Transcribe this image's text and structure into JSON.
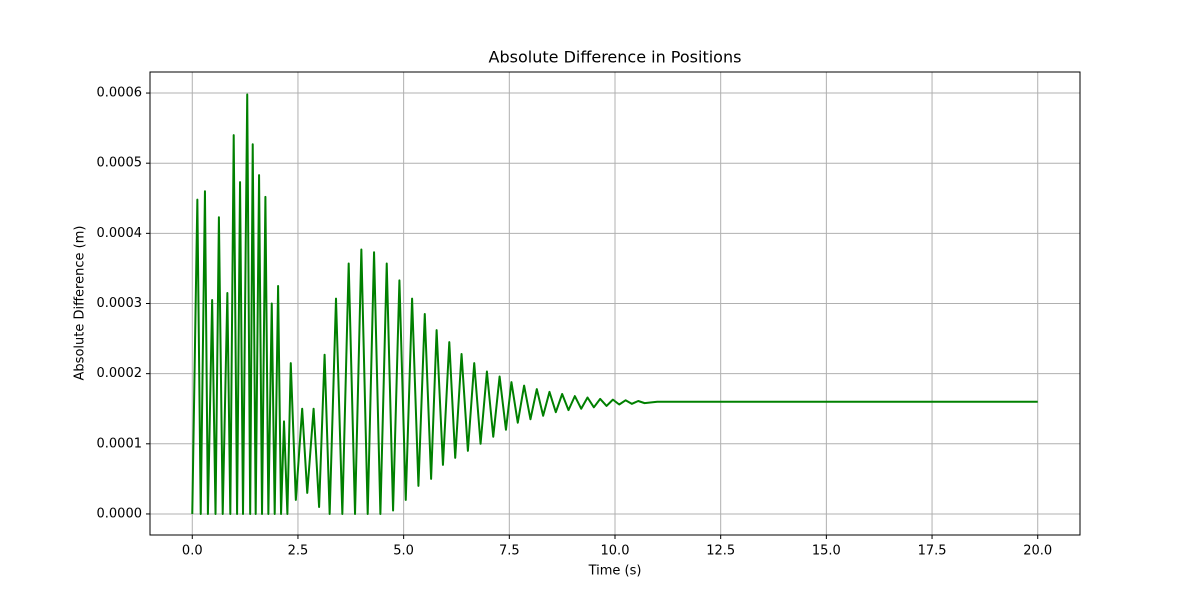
{
  "chart_data": {
    "type": "line",
    "title": "Absolute Difference in Positions",
    "x_label": "Time (s)",
    "y_label": "Absolute Difference (m)",
    "color": "#008000",
    "grid": true,
    "xlim": [
      -1,
      21
    ],
    "ylim": [
      -3e-05,
      0.00063
    ],
    "xticks": [
      {
        "value": 0,
        "label": "0.0"
      },
      2.5,
      {
        "value": 5,
        "label": "5.0"
      },
      7.5,
      {
        "value": 10,
        "label": "10.0"
      },
      12.5,
      {
        "value": 15,
        "label": "15.0"
      },
      17.5,
      {
        "value": 20,
        "label": "20.0"
      }
    ],
    "yticks": [
      {
        "value": 0,
        "label": "0.0000"
      },
      {
        "value": 0.0001,
        "label": "0.0001"
      },
      {
        "value": 0.0002,
        "label": "0.0002"
      },
      {
        "value": 0.0003,
        "label": "0.0003"
      },
      {
        "value": 0.0004,
        "label": "0.0004"
      },
      {
        "value": 0.0005,
        "label": "0.0005"
      },
      {
        "value": 0.0006,
        "label": "0.0006"
      }
    ],
    "x": [
      0,
      0.12,
      0.2,
      0.3,
      0.37,
      0.47,
      0.55,
      0.63,
      0.72,
      0.83,
      0.9,
      0.98,
      1.06,
      1.13,
      1.2,
      1.3,
      1.37,
      1.43,
      1.5,
      1.58,
      1.65,
      1.73,
      1.8,
      1.88,
      1.95,
      2.03,
      2.1,
      2.17,
      2.25,
      2.33,
      2.45,
      2.6,
      2.72,
      2.87,
      3.0,
      3.13,
      3.25,
      3.4,
      3.55,
      3.7,
      3.85,
      4.0,
      4.15,
      4.3,
      4.45,
      4.6,
      4.75,
      4.9,
      5.05,
      5.2,
      5.35,
      5.5,
      5.65,
      5.78,
      5.93,
      6.08,
      6.22,
      6.37,
      6.52,
      6.67,
      6.82,
      6.97,
      7.12,
      7.27,
      7.42,
      7.55,
      7.7,
      7.85,
      8.0,
      8.15,
      8.3,
      8.45,
      8.6,
      8.75,
      8.9,
      9.05,
      9.2,
      9.35,
      9.5,
      9.65,
      9.8,
      9.95,
      10.1,
      10.25,
      10.4,
      10.55,
      10.7,
      11,
      20
    ],
    "values": [
      0,
      0.000448,
      0,
      0.00046,
      0,
      0.000305,
      0,
      0.000423,
      0,
      0.000315,
      0,
      0.00054,
      0,
      0.000473,
      0,
      0.000598,
      0,
      0.000527,
      0,
      0.000483,
      0,
      0.000452,
      0,
      0.0003,
      0,
      0.000325,
      0,
      0.000132,
      0,
      0.000215,
      2e-05,
      0.00015,
      3e-05,
      0.00015,
      1e-05,
      0.000227,
      0,
      0.000307,
      0,
      0.000357,
      0,
      0.000377,
      0,
      0.000373,
      0,
      0.000357,
      5e-06,
      0.000333,
      2e-05,
      0.000307,
      4e-05,
      0.000285,
      5e-05,
      0.000262,
      7e-05,
      0.000245,
      8e-05,
      0.000228,
      9e-05,
      0.000215,
      0.0001,
      0.000203,
      0.00011,
      0.000196,
      0.00012,
      0.000188,
      0.00013,
      0.000183,
      0.000135,
      0.000178,
      0.00014,
      0.000174,
      0.000145,
      0.000171,
      0.000148,
      0.000168,
      0.00015,
      0.000166,
      0.000152,
      0.000164,
      0.000154,
      0.000163,
      0.000156,
      0.000162,
      0.000157,
      0.000161,
      0.000158,
      0.00016,
      0.00016
    ]
  }
}
